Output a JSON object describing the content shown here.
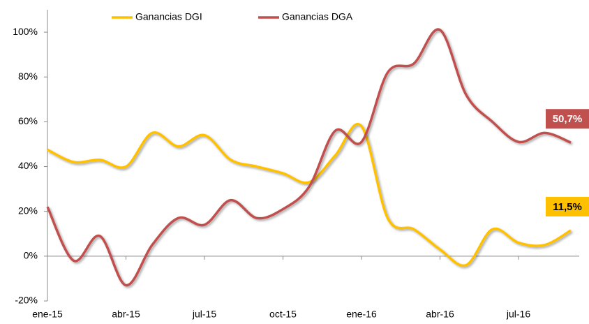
{
  "chart_data": {
    "type": "line",
    "categories": [
      "ene-15",
      null,
      null,
      "abr-15",
      null,
      null,
      "jul-15",
      null,
      null,
      "oct-15",
      null,
      null,
      "ene-16",
      null,
      null,
      "abr-16",
      null,
      null,
      "jul-16",
      null,
      null
    ],
    "series": [
      {
        "name": "Ganancias DGI",
        "color": "#ffc000",
        "values": [
          47.5,
          42,
          43,
          40,
          55,
          49,
          54,
          43,
          40,
          37,
          33,
          45,
          58,
          17,
          12,
          3,
          -4,
          12,
          6,
          5,
          11.5
        ],
        "value_labels": [
          null,
          null,
          null,
          null,
          null,
          null,
          null,
          null,
          null,
          null,
          null,
          null,
          null,
          null,
          null,
          null,
          null,
          null,
          null,
          null,
          "11,5%"
        ]
      },
      {
        "name": "Ganancias DGA",
        "color": "#c0504d",
        "values": [
          22,
          -2,
          9,
          -13,
          5,
          17,
          14,
          25,
          17,
          21,
          31,
          56,
          51,
          82,
          86,
          101,
          72,
          60,
          51,
          55,
          50.7
        ],
        "value_labels": [
          null,
          null,
          null,
          null,
          null,
          null,
          null,
          null,
          null,
          null,
          null,
          null,
          null,
          null,
          null,
          null,
          null,
          null,
          null,
          null,
          "50,7%"
        ]
      }
    ],
    "ylim": [
      -20,
      110
    ],
    "yticks": [
      {
        "value": -20,
        "label": "-20%"
      },
      {
        "value": 0,
        "label": "0%"
      },
      {
        "value": 20,
        "label": "20%"
      },
      {
        "value": 40,
        "label": "40%"
      },
      {
        "value": 60,
        "label": "60%"
      },
      {
        "value": 80,
        "label": "80%"
      },
      {
        "value": 100,
        "label": "100%"
      }
    ],
    "legend": "top"
  }
}
